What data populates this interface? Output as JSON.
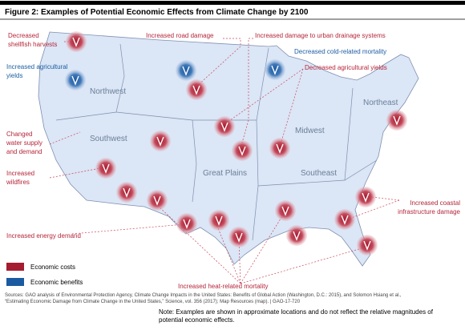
{
  "header": {
    "title": "Figure 2: Examples of Potential Economic Effects from Climate Change by 2100"
  },
  "regions": [
    "Northwest",
    "Southwest",
    "Great Plains",
    "Midwest",
    "Southeast",
    "Northeast"
  ],
  "cost_labels": [
    [
      "Decreased",
      "shellfish harvests"
    ],
    [
      "Increased road damage"
    ],
    [
      "Increased damage to urban drainage systems"
    ],
    [
      "Decreased agricultural yields"
    ],
    [
      "Changed",
      "water supply",
      "and demand"
    ],
    [
      "Increased",
      "wildfires"
    ],
    [
      "Increased energy demand"
    ],
    [
      "Increased coastal",
      "infrastructure damage"
    ],
    [
      "Increased heat-related mortality"
    ]
  ],
  "benefit_labels": [
    [
      "Increased agricultural",
      "yields"
    ],
    [
      "Decreased cold-related mortality"
    ]
  ],
  "legend": [
    "Economic costs",
    "Economic benefits"
  ],
  "sources": [
    "Sources: GAO analysis of Environmental Protection Agency, Climate Change Impacts in the United States: Benefits of Global Action (Washington, D.C.: 2015), and Solomon Hsiang et al.,",
    "“Estimating Economic Damage from Climate Change in the United States,” Science, vol. 356 (2017); Map Resources (map).  |  GAO-17-720"
  ],
  "note": [
    "Note: Examples are shown in approximate locations and do not reflect the relative magnitudes of",
    "potential economic effects."
  ]
}
